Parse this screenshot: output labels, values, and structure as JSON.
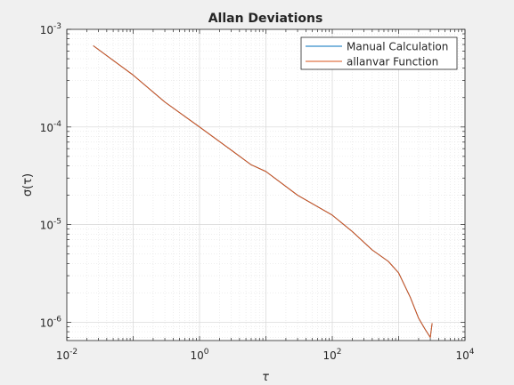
{
  "chart_data": {
    "type": "line",
    "title": "Allan Deviations",
    "xlabel": "τ",
    "ylabel": "σ(τ)",
    "xscale": "log",
    "yscale": "log",
    "xlim": [
      0.01,
      10000
    ],
    "ylim": [
      6.5e-07,
      0.001
    ],
    "grid": true,
    "minor_grid": true,
    "legend_position": "top-right",
    "x_ticks": [
      {
        "value": 0.01,
        "base": "10",
        "exp": "-2"
      },
      {
        "value": 1,
        "base": "10",
        "exp": "0"
      },
      {
        "value": 100,
        "base": "10",
        "exp": "2"
      },
      {
        "value": 10000,
        "base": "10",
        "exp": "4"
      }
    ],
    "y_ticks": [
      {
        "value": 0.001,
        "base": "10",
        "exp": "-3"
      },
      {
        "value": 0.0001,
        "base": "10",
        "exp": "-4"
      },
      {
        "value": 1e-05,
        "base": "10",
        "exp": "-5"
      },
      {
        "value": 1e-06,
        "base": "10",
        "exp": "-6"
      }
    ],
    "series": [
      {
        "name": "Manual Calculation",
        "color": "#0072bd",
        "x": [
          0.025,
          0.1,
          0.3,
          1,
          3,
          6,
          10,
          30,
          100,
          200,
          400,
          700,
          1000,
          1500,
          2000,
          2500,
          3000,
          3200
        ],
        "y": [
          0.00068,
          0.00034,
          0.00018,
          0.0001,
          5.8e-05,
          4.1e-05,
          3.5e-05,
          2e-05,
          1.25e-05,
          8.5e-06,
          5.5e-06,
          4.2e-06,
          3.2e-06,
          1.8e-06,
          1.1e-06,
          8.5e-07,
          7e-07,
          9.8e-07
        ]
      },
      {
        "name": "allanvar Function",
        "color": "#d95319",
        "x": [
          0.025,
          0.1,
          0.3,
          1,
          3,
          6,
          10,
          30,
          100,
          200,
          400,
          700,
          1000,
          1500,
          2000,
          2500,
          3000,
          3200
        ],
        "y": [
          0.00068,
          0.00034,
          0.00018,
          0.0001,
          5.8e-05,
          4.1e-05,
          3.5e-05,
          2e-05,
          1.25e-05,
          8.5e-06,
          5.5e-06,
          4.2e-06,
          3.2e-06,
          1.8e-06,
          1.1e-06,
          8.5e-07,
          7e-07,
          9.8e-07
        ]
      }
    ]
  }
}
